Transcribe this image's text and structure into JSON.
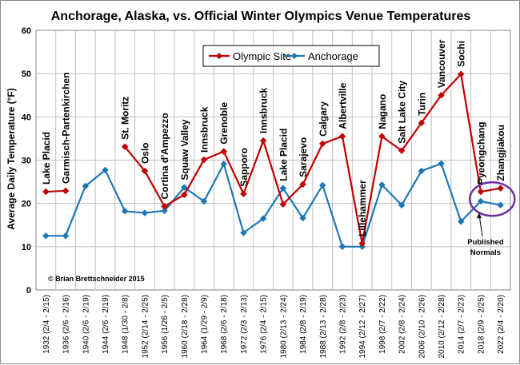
{
  "chart_data": {
    "type": "line",
    "title": "Anchorage, Alaska, vs. Official Winter Olympics Venue Temperatures",
    "ylabel": "Average Daily Temperature (°F)",
    "xlabel": "",
    "ylim": [
      0,
      60
    ],
    "yticks": [
      0,
      10,
      20,
      30,
      40,
      50,
      60
    ],
    "grid": true,
    "legend_position": "top-center",
    "categories": [
      "1932 (2/4 - 2/15)",
      "1936 (2/6 - 2/16)",
      "1940 (2/6 - 2/19)",
      "1944 (2/6 - 2/19)",
      "1948 (1/30 - 2/8)",
      "1952 (2/14 - 2/25)",
      "1956 (1/26 - 2/5)",
      "1960 (2/18 - 2/28)",
      "1964 (1/29 - 2/9)",
      "1968 (2/6 - 2/18)",
      "1972 (2/3 - 2/13)",
      "1976 (2/4 - 2/15)",
      "1980 (2/13 - 2/24)",
      "1984 (2/8 - 2/19)",
      "1988 (2/13 - 2/28)",
      "1992 (2/8 - 2/23)",
      "1994 (2/12 - 2/27)",
      "1998 (2/7 - 2/22)",
      "2002 (2/8 - 2/24)",
      "2006 (2/10 - 2/26)",
      "2010 (2/12 - 2/28)",
      "2014 (2/7 - 2/23)",
      "2018 (2/9 - 2/25)",
      "2022 (2/4 - 2/20)"
    ],
    "series": [
      {
        "name": "Olympic Site",
        "color": "#c00000",
        "marker": "diamond",
        "values": [
          22.7,
          22.9,
          null,
          null,
          33.1,
          27.5,
          19.3,
          22.0,
          30.1,
          32.0,
          22.2,
          34.5,
          19.8,
          24.4,
          33.8,
          35.5,
          10.7,
          35.5,
          32.2,
          38.6,
          45.0,
          49.9,
          22.7,
          23.5
        ]
      },
      {
        "name": "Anchorage",
        "color": "#1f77b4",
        "marker": "diamond",
        "values": [
          12.5,
          12.5,
          24.0,
          27.7,
          18.2,
          17.8,
          18.3,
          23.7,
          20.5,
          29.1,
          13.2,
          16.5,
          23.5,
          16.6,
          24.2,
          10.0,
          10.0,
          24.3,
          19.6,
          27.5,
          29.2,
          15.8,
          20.5,
          19.6
        ]
      }
    ],
    "site_labels": [
      "Lake Placid",
      "Garmisch-Partenkirchen",
      "",
      "",
      "St. Moritz",
      "Oslo",
      "Cortina d'Ampezzo",
      "Squaw Valley",
      "Innsbruck",
      "Grenoble",
      "Sapporo",
      "Innsbruck",
      "Lake Placid",
      "Sarajevo",
      "Calgary",
      "Albertville",
      "Lillehammer",
      "Nagano",
      "Salt Lake City",
      "Turin",
      "Vancouver",
      "Sochi",
      "Pyeongchang",
      "Zhangjiakou"
    ],
    "annotations": {
      "published_normals": "Published Normals",
      "credit": "© Brian Brettschneider 2015"
    },
    "colors": {
      "grid": "#bfbfbf",
      "plot_border": "#808080",
      "highlight_ellipse": "#7030a0"
    }
  }
}
